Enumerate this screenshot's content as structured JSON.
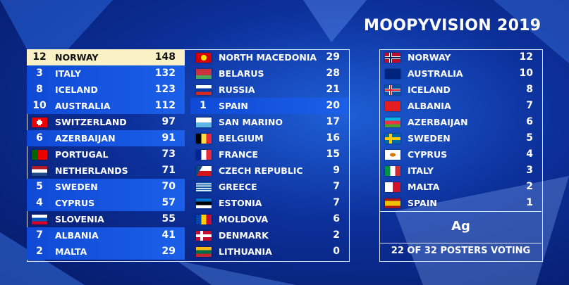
{
  "title": "MOOPYVISION 2019",
  "scoreboard": {
    "columns": [
      [
        {
          "points": 12,
          "country": "NORWAY",
          "score": 148
        },
        {
          "points": 3,
          "country": "ITALY",
          "score": 132
        },
        {
          "points": 8,
          "country": "ICELAND",
          "score": 123
        },
        {
          "points": 10,
          "country": "AUSTRALIA",
          "score": 112
        },
        {
          "country": "SWITZERLAND",
          "score": 97
        },
        {
          "points": 6,
          "country": "AZERBAIJAN",
          "score": 91
        },
        {
          "country": "PORTUGAL",
          "score": 73
        },
        {
          "country": "NETHERLANDS",
          "score": 71
        },
        {
          "points": 5,
          "country": "SWEDEN",
          "score": 70
        },
        {
          "points": 4,
          "country": "CYPRUS",
          "score": 57
        },
        {
          "country": "SLOVENIA",
          "score": 55
        },
        {
          "points": 7,
          "country": "ALBANIA",
          "score": 41
        },
        {
          "points": 2,
          "country": "MALTA",
          "score": 29
        }
      ],
      [
        {
          "country": "NORTH MACEDONIA",
          "score": 29
        },
        {
          "country": "BELARUS",
          "score": 28
        },
        {
          "country": "RUSSIA",
          "score": 21
        },
        {
          "points": 1,
          "country": "SPAIN",
          "score": 20
        },
        {
          "country": "SAN MARINO",
          "score": 17
        },
        {
          "country": "BELGIUM",
          "score": 16
        },
        {
          "country": "FRANCE",
          "score": 15
        },
        {
          "country": "CZECH REPUBLIC",
          "score": 9
        },
        {
          "country": "GREECE",
          "score": 7
        },
        {
          "country": "ESTONIA",
          "score": 7
        },
        {
          "country": "MOLDOVA",
          "score": 6
        },
        {
          "country": "DENMARK",
          "score": 2
        },
        {
          "country": "LITHUANIA",
          "score": 0
        }
      ]
    ]
  },
  "voting": {
    "awarded": [
      {
        "country": "NORWAY",
        "points": 12
      },
      {
        "country": "AUSTRALIA",
        "points": 10
      },
      {
        "country": "ICELAND",
        "points": 8
      },
      {
        "country": "ALBANIA",
        "points": 7
      },
      {
        "country": "AZERBAIJAN",
        "points": 6
      },
      {
        "country": "SWEDEN",
        "points": 5
      },
      {
        "country": "CYPRUS",
        "points": 4
      },
      {
        "country": "ITALY",
        "points": 3
      },
      {
        "country": "MALTA",
        "points": 2
      },
      {
        "country": "SPAIN",
        "points": 1
      }
    ],
    "voter": "Ag",
    "status": "22 OF 32 POSTERS VOTING"
  }
}
